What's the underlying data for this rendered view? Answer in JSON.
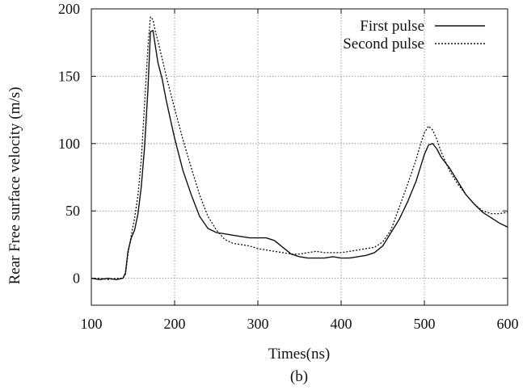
{
  "chart_data": {
    "type": "line",
    "title": "",
    "xlabel": "Times(ns)",
    "ylabel": "Rear Free surface velocity (m/s)",
    "caption": "(b)",
    "xlim": [
      100,
      600
    ],
    "ylim": [
      -20,
      200
    ],
    "xticks": [
      100,
      200,
      300,
      400,
      500,
      600
    ],
    "yticks": [
      0,
      50,
      100,
      150,
      200
    ],
    "grid": true,
    "legend_position": "top-right",
    "series": [
      {
        "name": "First pulse",
        "style": "solid",
        "color": "#111111",
        "x": [
          100,
          110,
          120,
          130,
          138,
          141,
          144,
          148,
          152,
          156,
          160,
          164,
          168,
          171,
          174,
          177,
          180,
          185,
          190,
          195,
          200,
          210,
          220,
          230,
          240,
          250,
          260,
          270,
          280,
          290,
          300,
          310,
          320,
          330,
          340,
          350,
          360,
          370,
          380,
          390,
          400,
          410,
          420,
          430,
          440,
          450,
          460,
          470,
          480,
          490,
          495,
          500,
          505,
          510,
          515,
          520,
          530,
          540,
          550,
          560,
          570,
          580,
          590,
          600
        ],
        "y": [
          0,
          -1,
          0,
          -1,
          0,
          4,
          20,
          30,
          36,
          48,
          68,
          98,
          140,
          183,
          184,
          172,
          160,
          148,
          132,
          118,
          104,
          80,
          62,
          46,
          37,
          34,
          33,
          32,
          31,
          30,
          30,
          30,
          28,
          23,
          18,
          16,
          15,
          15,
          15,
          16,
          15,
          15,
          16,
          17,
          19,
          24,
          34,
          44,
          57,
          72,
          82,
          92,
          99,
          100,
          96,
          90,
          82,
          72,
          62,
          55,
          49,
          45,
          41,
          38
        ]
      },
      {
        "name": "Second pulse",
        "style": "dotted",
        "color": "#111111",
        "x": [
          100,
          110,
          120,
          130,
          138,
          141,
          144,
          148,
          152,
          156,
          160,
          164,
          168,
          171,
          174,
          177,
          180,
          185,
          190,
          195,
          200,
          210,
          220,
          230,
          240,
          250,
          260,
          270,
          280,
          290,
          300,
          310,
          320,
          330,
          340,
          350,
          360,
          370,
          380,
          390,
          400,
          410,
          420,
          430,
          440,
          450,
          460,
          470,
          480,
          490,
          495,
          500,
          505,
          510,
          515,
          520,
          530,
          540,
          550,
          560,
          570,
          580,
          590,
          600
        ],
        "y": [
          0,
          0,
          -1,
          0,
          0,
          3,
          18,
          32,
          45,
          62,
          88,
          130,
          172,
          194,
          192,
          183,
          176,
          163,
          150,
          138,
          126,
          103,
          82,
          62,
          46,
          36,
          29,
          26,
          25,
          24,
          22,
          21,
          20,
          19,
          18,
          18,
          19,
          20,
          19,
          19,
          19,
          20,
          21,
          22,
          23,
          27,
          36,
          53,
          70,
          88,
          99,
          108,
          113,
          110,
          103,
          94,
          80,
          70,
          62,
          55,
          50,
          48,
          48,
          49
        ]
      }
    ]
  }
}
